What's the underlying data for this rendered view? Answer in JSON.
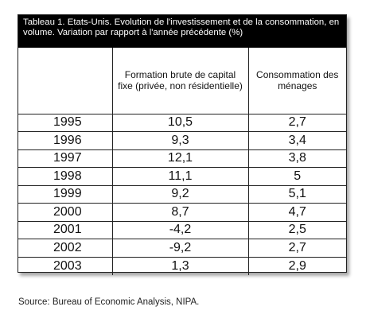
{
  "table": {
    "title": "Tableau 1. Etats-Unis. Evolution de l'investissement et de la consommation, en volume. Variation par rapport à l'année précédente (%)",
    "columns": [
      "",
      "Formation brute de capital fixe (privée, non résidentielle)",
      "Consommation des ménages"
    ],
    "rows": [
      [
        "1995",
        "10,5",
        "2,7"
      ],
      [
        "1996",
        "9,3",
        "3,4"
      ],
      [
        "1997",
        "12,1",
        "3,8"
      ],
      [
        "1998",
        "11,1",
        "5"
      ],
      [
        "1999",
        "9,2",
        "5,1"
      ],
      [
        "2000",
        "8,7",
        "4,7"
      ],
      [
        "2001",
        "-4,2",
        "2,5"
      ],
      [
        "2002",
        "-9,2",
        "2,7"
      ],
      [
        "2003",
        "1,3",
        "2,9"
      ]
    ]
  },
  "source": "Source: Bureau of Economic Analysis, NIPA."
}
